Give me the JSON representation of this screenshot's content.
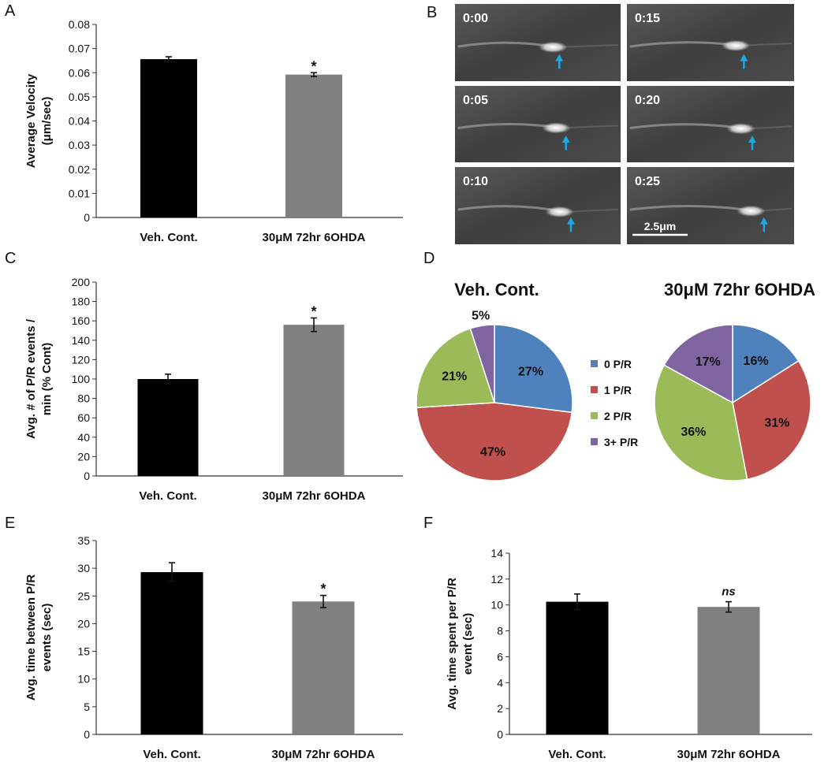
{
  "panel_labels": {
    "a": "A",
    "b": "B",
    "c": "C",
    "d": "D",
    "e": "E",
    "f": "F"
  },
  "colors": {
    "control_bar": "#000000",
    "treated_bar": "#808080",
    "pie_0": "#4f81bd",
    "pie_1": "#c0504d",
    "pie_2": "#9bbb59",
    "pie_3": "#8064a2",
    "arrow": "#1ea7e1"
  },
  "microscopy": {
    "time_labels": [
      "0:00",
      "0:15",
      "0:05",
      "0:20",
      "0:10",
      "0:25"
    ],
    "scale_bar_label": "2.5μm"
  },
  "chart_data": [
    {
      "id": "A",
      "type": "bar",
      "categories": [
        "Veh. Cont.",
        "30μM 72hr 6OHDA"
      ],
      "values": [
        0.0656,
        0.0592
      ],
      "errors": [
        0.001,
        0.0008
      ],
      "significance": [
        "",
        "*"
      ],
      "ylabel_lines": [
        "Average Velocity",
        "(μm/sec)"
      ],
      "ylim": [
        0,
        0.08
      ],
      "yticks": [
        "0",
        "0.01",
        "0.02",
        "0.03",
        "0.04",
        "0.05",
        "0.06",
        "0.07",
        "0.08"
      ]
    },
    {
      "id": "C",
      "type": "bar",
      "categories": [
        "Veh. Cont.",
        "30μM 72hr 6OHDA"
      ],
      "values": [
        100,
        156
      ],
      "errors": [
        5,
        7
      ],
      "significance": [
        "",
        "*"
      ],
      "ylabel_lines": [
        "Avg. # of P/R events /",
        "min (% Cont)"
      ],
      "ylim": [
        0,
        200
      ],
      "yticks": [
        "0",
        "20",
        "40",
        "60",
        "80",
        "100",
        "120",
        "140",
        "160",
        "180",
        "200"
      ]
    },
    {
      "id": "D",
      "type": "pie",
      "legend": [
        "0 P/R",
        "1 P/R",
        "2 P/R",
        "3+ P/R"
      ],
      "pies": [
        {
          "title": "Veh. Cont.",
          "values": [
            27,
            47,
            21,
            5
          ],
          "labels": [
            "27%",
            "47%",
            "21%",
            "5%"
          ]
        },
        {
          "title": "30μM 72hr 6OHDA",
          "values": [
            16,
            31,
            36,
            17
          ],
          "labels": [
            "16%",
            "31%",
            "36%",
            "17%"
          ]
        }
      ]
    },
    {
      "id": "E",
      "type": "bar",
      "categories": [
        "Veh. Cont.",
        "30μM 72hr 6OHDA"
      ],
      "values": [
        29.3,
        24.0
      ],
      "errors": [
        1.7,
        1.1
      ],
      "significance": [
        "",
        "*"
      ],
      "ylabel_lines": [
        "Avg. time between P/R",
        "events (sec)"
      ],
      "ylim": [
        0,
        35
      ],
      "yticks": [
        "0",
        "5",
        "10",
        "15",
        "20",
        "25",
        "30",
        "35"
      ]
    },
    {
      "id": "F",
      "type": "bar",
      "categories": [
        "Veh. Cont.",
        "30μM 72hr 6OHDA"
      ],
      "values": [
        10.25,
        9.85
      ],
      "errors": [
        0.6,
        0.4
      ],
      "significance": [
        "",
        "ns"
      ],
      "ylabel_lines": [
        "Avg. time spent per P/R",
        "event (sec)"
      ],
      "ylim": [
        0,
        14
      ],
      "yticks": [
        "0",
        "2",
        "4",
        "6",
        "8",
        "10",
        "12",
        "14"
      ]
    }
  ]
}
